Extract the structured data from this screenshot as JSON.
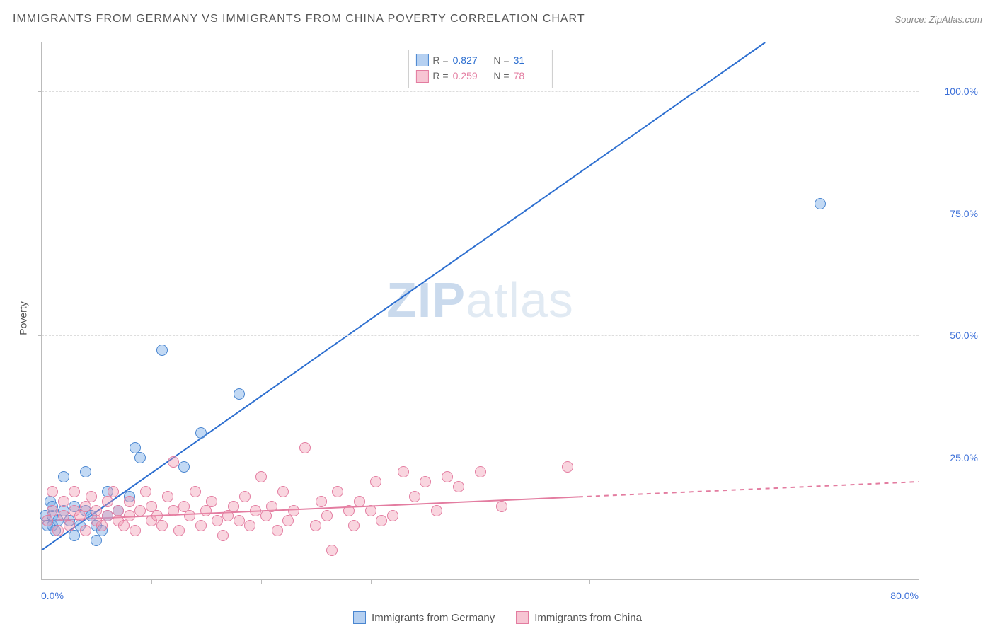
{
  "title": "IMMIGRANTS FROM GERMANY VS IMMIGRANTS FROM CHINA POVERTY CORRELATION CHART",
  "source": "Source: ZipAtlas.com",
  "ylabel": "Poverty",
  "watermark_a": "ZIP",
  "watermark_b": "atlas",
  "xlim": [
    0,
    80
  ],
  "ylim": [
    0,
    110
  ],
  "ytick_step": 25,
  "ytick_labels": [
    "25.0%",
    "50.0%",
    "75.0%",
    "100.0%"
  ],
  "ytick_values": [
    25,
    50,
    75,
    100
  ],
  "ytick_color": "#3b6fd8",
  "xtick_positions": [
    0,
    10,
    20,
    30,
    40,
    50
  ],
  "x_left_label": "0.0%",
  "x_right_label": "80.0%",
  "x_label_color": "#3b6fd8",
  "grid_color": "#dddddd",
  "axis_color": "#bbbbbb",
  "background_color": "#ffffff",
  "series": [
    {
      "key": "germany",
      "label": "Immigrants from Germany",
      "marker_fill": "rgba(120,170,230,0.45)",
      "marker_stroke": "#4a86d0",
      "line_color": "#2d6fd0",
      "stat_color": "#2d6fd0",
      "R": "0.827",
      "N": "31",
      "trend": {
        "x1": 0,
        "y1": 6,
        "x2": 66,
        "y2": 110,
        "x_solid_end": 66
      },
      "points": [
        [
          0.3,
          13
        ],
        [
          0.5,
          11
        ],
        [
          0.8,
          16
        ],
        [
          1,
          11
        ],
        [
          1,
          13
        ],
        [
          1,
          15
        ],
        [
          1.2,
          10
        ],
        [
          1.5,
          12
        ],
        [
          2,
          14
        ],
        [
          2,
          21
        ],
        [
          2.5,
          12
        ],
        [
          3,
          9
        ],
        [
          3,
          15
        ],
        [
          3.5,
          11
        ],
        [
          4,
          14
        ],
        [
          4,
          22
        ],
        [
          4.5,
          13
        ],
        [
          5,
          11
        ],
        [
          5,
          8
        ],
        [
          5.5,
          10
        ],
        [
          6,
          18
        ],
        [
          6,
          13
        ],
        [
          7,
          14
        ],
        [
          8,
          17
        ],
        [
          8.5,
          27
        ],
        [
          9,
          25
        ],
        [
          11,
          47
        ],
        [
          13,
          23
        ],
        [
          14.5,
          30
        ],
        [
          18,
          38
        ],
        [
          71,
          77
        ]
      ]
    },
    {
      "key": "china",
      "label": "Immigrants from China",
      "marker_fill": "rgba(240,150,175,0.40)",
      "marker_stroke": "#e37ca0",
      "line_color": "#e37ca0",
      "stat_color": "#e37ca0",
      "R": "0.259",
      "N": "78",
      "trend": {
        "x1": 0,
        "y1": 12,
        "x2": 80,
        "y2": 20,
        "x_solid_end": 49
      },
      "points": [
        [
          0.5,
          12
        ],
        [
          1,
          14
        ],
        [
          1,
          18
        ],
        [
          1.5,
          10
        ],
        [
          2,
          13
        ],
        [
          2,
          16
        ],
        [
          2.5,
          11
        ],
        [
          3,
          14
        ],
        [
          3,
          18
        ],
        [
          3.5,
          13
        ],
        [
          4,
          10
        ],
        [
          4,
          15
        ],
        [
          4.5,
          17
        ],
        [
          5,
          12
        ],
        [
          5,
          14
        ],
        [
          5.5,
          11
        ],
        [
          6,
          13
        ],
        [
          6,
          16
        ],
        [
          6.5,
          18
        ],
        [
          7,
          12
        ],
        [
          7,
          14
        ],
        [
          7.5,
          11
        ],
        [
          8,
          16
        ],
        [
          8,
          13
        ],
        [
          8.5,
          10
        ],
        [
          9,
          14
        ],
        [
          9.5,
          18
        ],
        [
          10,
          12
        ],
        [
          10,
          15
        ],
        [
          10.5,
          13
        ],
        [
          11,
          11
        ],
        [
          11.5,
          17
        ],
        [
          12,
          14
        ],
        [
          12,
          24
        ],
        [
          12.5,
          10
        ],
        [
          13,
          15
        ],
        [
          13.5,
          13
        ],
        [
          14,
          18
        ],
        [
          14.5,
          11
        ],
        [
          15,
          14
        ],
        [
          15.5,
          16
        ],
        [
          16,
          12
        ],
        [
          16.5,
          9
        ],
        [
          17,
          13
        ],
        [
          17.5,
          15
        ],
        [
          18,
          12
        ],
        [
          18.5,
          17
        ],
        [
          19,
          11
        ],
        [
          19.5,
          14
        ],
        [
          20,
          21
        ],
        [
          20.5,
          13
        ],
        [
          21,
          15
        ],
        [
          21.5,
          10
        ],
        [
          22,
          18
        ],
        [
          22.5,
          12
        ],
        [
          23,
          14
        ],
        [
          24,
          27
        ],
        [
          25,
          11
        ],
        [
          25.5,
          16
        ],
        [
          26,
          13
        ],
        [
          26.5,
          6
        ],
        [
          27,
          18
        ],
        [
          28,
          14
        ],
        [
          28.5,
          11
        ],
        [
          29,
          16
        ],
        [
          30,
          14
        ],
        [
          30.5,
          20
        ],
        [
          31,
          12
        ],
        [
          32,
          13
        ],
        [
          33,
          22
        ],
        [
          34,
          17
        ],
        [
          35,
          20
        ],
        [
          36,
          14
        ],
        [
          37,
          21
        ],
        [
          38,
          19
        ],
        [
          40,
          22
        ],
        [
          42,
          15
        ],
        [
          48,
          23
        ]
      ]
    }
  ],
  "marker_radius": 8,
  "legend_swatch": {
    "germany": {
      "fill": "rgba(120,170,230,0.55)",
      "border": "#4a86d0"
    },
    "china": {
      "fill": "rgba(240,150,175,0.55)",
      "border": "#e37ca0"
    }
  },
  "legend_labels": {
    "R": "R =",
    "N": "N ="
  }
}
